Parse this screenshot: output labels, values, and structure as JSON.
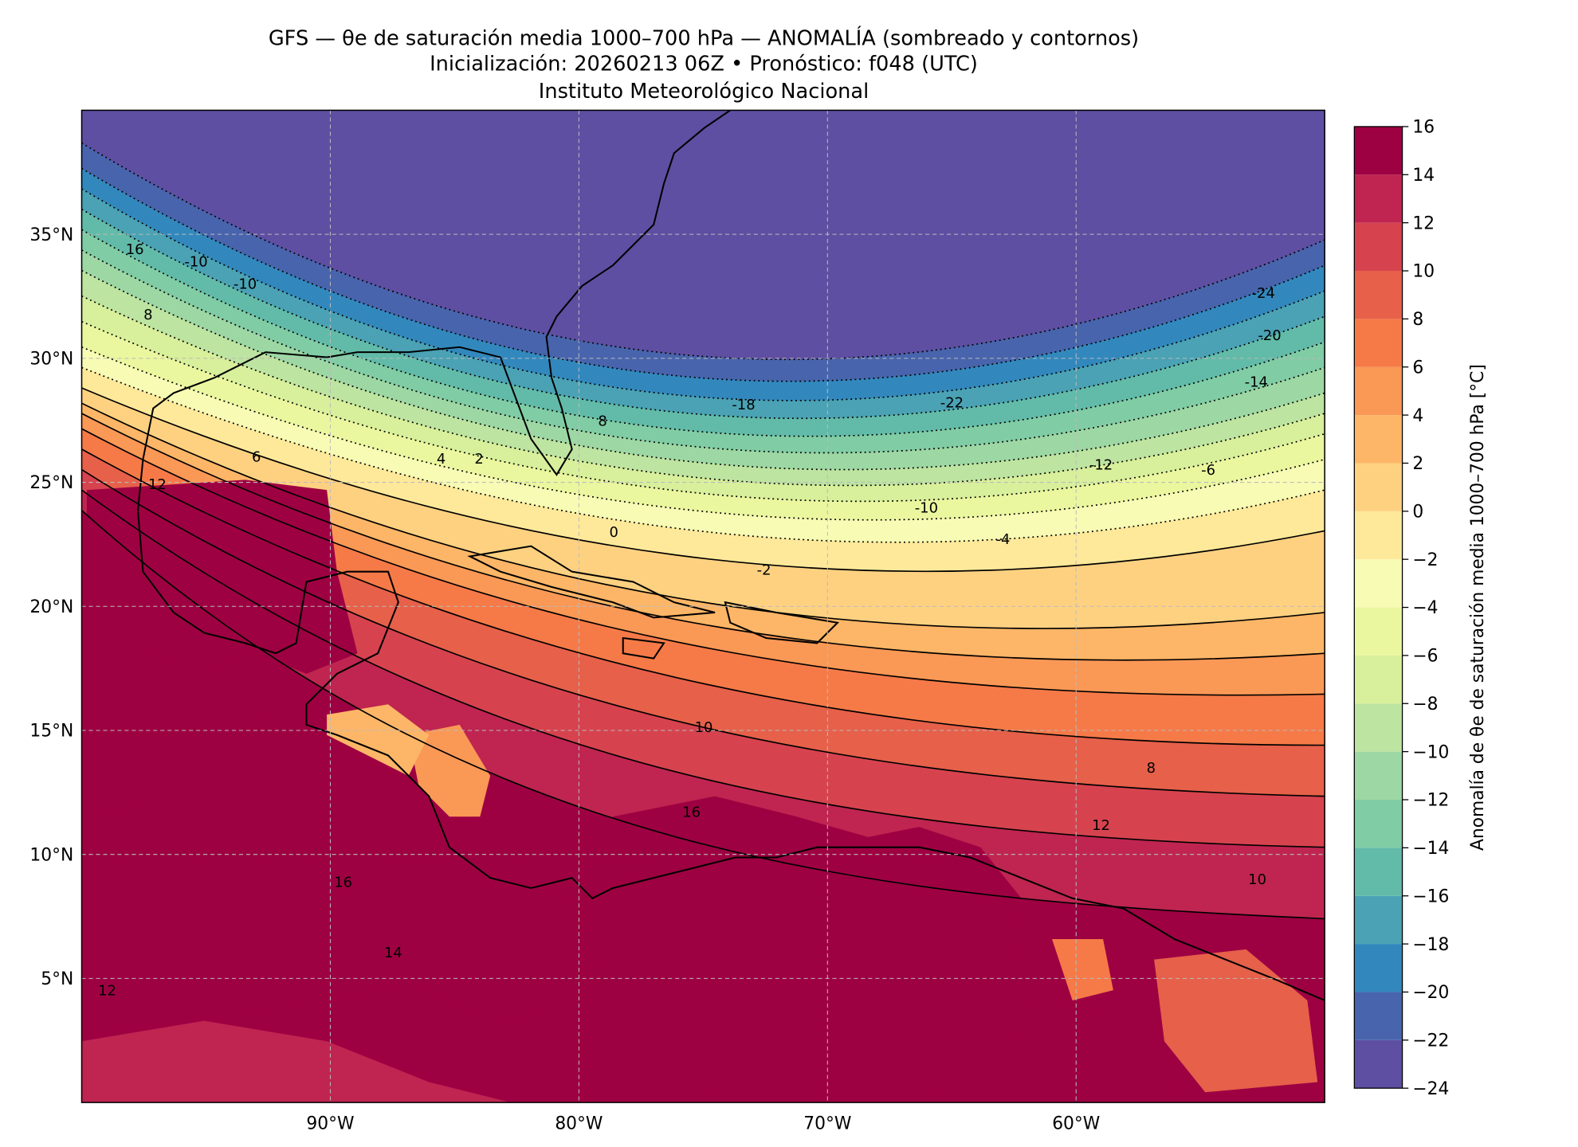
{
  "map": {
    "title": "GFS — θe de saturación media 1000–700 hPa — ANOMALÍA (sombreado y contornos)",
    "subtitle": "Inicialización: 20260213 06Z   •   Pronóstico: f048 (UTC)",
    "institution": "Instituto Meteorológico Nacional",
    "xlim": [
      -100,
      -50
    ],
    "ylim": [
      0,
      40
    ],
    "xticks": [
      {
        "value": -90,
        "label": "90°W"
      },
      {
        "value": -80,
        "label": "80°W"
      },
      {
        "value": -70,
        "label": "70°W"
      },
      {
        "value": -60,
        "label": "60°W"
      }
    ],
    "yticks": [
      {
        "value": 35,
        "label": "35°N"
      },
      {
        "value": 30,
        "label": "30°N"
      },
      {
        "value": 25,
        "label": "25°N"
      },
      {
        "value": 20,
        "label": "20°N"
      },
      {
        "value": 15,
        "label": "15°N"
      },
      {
        "value": 10,
        "label": "10°N"
      },
      {
        "value": 5,
        "label": "5°N"
      }
    ],
    "grid": true,
    "colorbar": {
      "label": "Anomalía de θe de saturación media 1000–700 hPa [°C]",
      "ticks": [
        {
          "value": -24,
          "label": "−24"
        },
        {
          "value": -22,
          "label": "−22"
        },
        {
          "value": -20,
          "label": "−20"
        },
        {
          "value": -18,
          "label": "−18"
        },
        {
          "value": -16,
          "label": "−16"
        },
        {
          "value": -14,
          "label": "−14"
        },
        {
          "value": -12,
          "label": "−12"
        },
        {
          "value": -10,
          "label": "−10"
        },
        {
          "value": -8,
          "label": "−8"
        },
        {
          "value": -6,
          "label": "−6"
        },
        {
          "value": -4,
          "label": "−4"
        },
        {
          "value": -2,
          "label": "−2"
        },
        0,
        2,
        4,
        6,
        8,
        10,
        12,
        14,
        16
      ],
      "colors": [
        "#5e4fa2",
        "#4864ac",
        "#3288bd",
        "#4aa2b4",
        "#62bba8",
        "#80cca5",
        "#9dd7a4",
        "#bde4a0",
        "#d8ef9b",
        "#ebf79f",
        "#f7fbb4",
        "#fee99a",
        "#fed181",
        "#fdb667",
        "#fa9856",
        "#f57a48",
        "#e6604a",
        "#d6434e",
        "#bf2550",
        "#9e0142"
      ]
    },
    "contour_labels": [
      -24,
      -20,
      -14,
      -22,
      -18,
      -12,
      -6,
      -10,
      -4,
      -2,
      0,
      2,
      4,
      6,
      8,
      12,
      10,
      8,
      12,
      16,
      14,
      16,
      10,
      12,
      16,
      -10,
      -10,
      8
    ]
  }
}
